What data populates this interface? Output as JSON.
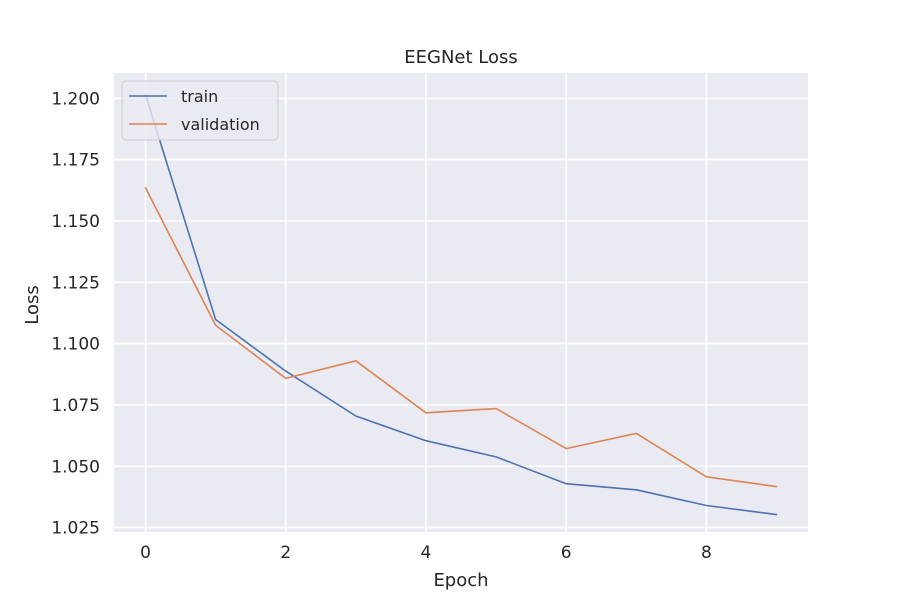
{
  "chart_data": {
    "type": "line",
    "title": "EEGNet Loss",
    "xlabel": "Epoch",
    "ylabel": "Loss",
    "x": [
      0,
      1,
      2,
      3,
      4,
      5,
      6,
      7,
      8,
      9
    ],
    "xlim": [
      -0.45,
      9.45
    ],
    "ylim": [
      1.0232,
      1.2103
    ],
    "xticks": [
      0,
      2,
      4,
      6,
      8
    ],
    "yticks": [
      1.025,
      1.05,
      1.075,
      1.1,
      1.125,
      1.15,
      1.175,
      1.2
    ],
    "ytick_labels": [
      "1.025",
      "1.050",
      "1.075",
      "1.100",
      "1.125",
      "1.150",
      "1.175",
      "1.200"
    ],
    "grid": true,
    "legend_position": "top-left",
    "background": "#eaeaf2",
    "series": [
      {
        "name": "train",
        "color": "#4c72b0",
        "values": [
          1.2015,
          1.1098,
          1.0888,
          1.0705,
          1.0604,
          1.0538,
          1.0429,
          1.0404,
          1.034,
          1.0303
        ]
      },
      {
        "name": "validation",
        "color": "#dd8452",
        "values": [
          1.1635,
          1.1075,
          1.0858,
          1.093,
          1.0718,
          1.0735,
          1.0572,
          1.0634,
          1.0457,
          1.0417
        ]
      }
    ]
  }
}
